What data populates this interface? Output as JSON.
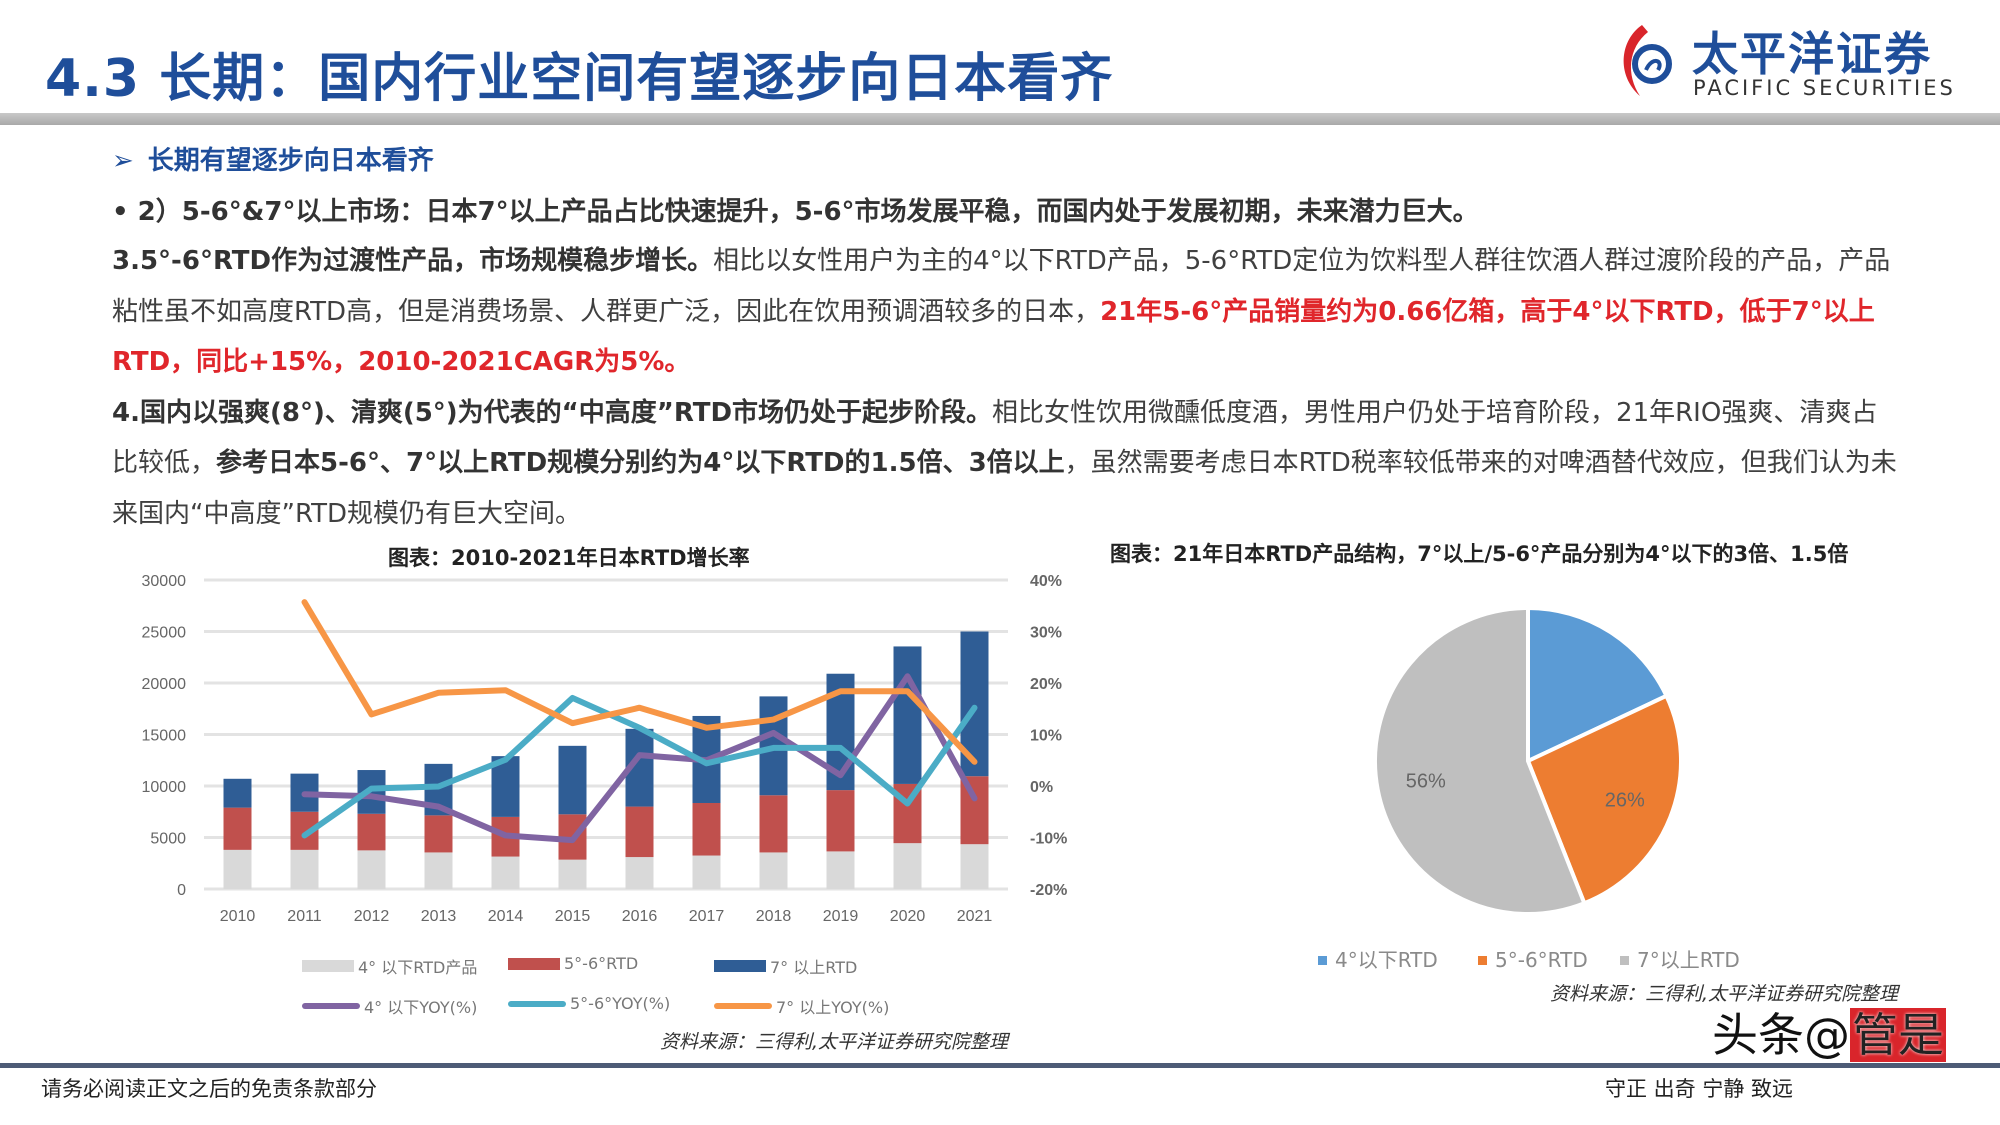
{
  "header": {
    "title": "4.3 长期：国内行业空间有望逐步向日本看齐",
    "logo_cn": "太平洋证券",
    "logo_en": "PACIFIC SECURITIES"
  },
  "content": {
    "subheading_icon": "arrow-right-icon",
    "subheading": "长期有望逐步向日本看齐",
    "bullet": "•  2）5-6°&7°以上市场：日本7°以上产品占比快速提升，5-6°市场发展平稳，而国内处于发展初期，未来潜力巨大。",
    "para3": {
      "bold": "3.5°-6°RTD作为过渡性产品，市场规模稳步增长。",
      "normal": "相比以女性用户为主的4°以下RTD产品，5-6°RTD定位为饮料型人群往饮酒人群过渡阶段的产品，产品粘性虽不如高度RTD高，但是消费场景、人群更广泛，因此在饮用预调酒较多的日本，",
      "red": "21年5-6°产品销量约为0.66亿箱，高于4°以下RTD，低于7°以上RTD，同比+15%，2010-2021CAGR为5%。"
    },
    "para4": {
      "bold1": "4.国内以强爽(8°)、清爽(5°)为代表的“中高度”RTD市场仍处于起步阶段。",
      "normal1": "相比女性饮用微醺低度酒，男性用户仍处于培育阶段，21年RIO强爽、清爽占比较低，",
      "bold2": "参考日本5-6°、7°以上RTD规模分别约为4°以下RTD的1.5倍、3倍以上",
      "normal2": "，虽然需要考虑日本RTD税率较低带来的对啤酒替代效应，但我们认为未来国内“中高度”RTD规模仍有巨大空间。"
    }
  },
  "chart_data": [
    {
      "type": "bar",
      "stacked": true,
      "title": "图表：2010-2021年日本RTD增长率",
      "categories": [
        "2010",
        "2011",
        "2012",
        "2013",
        "2014",
        "2015",
        "2016",
        "2017",
        "2018",
        "2019",
        "2020",
        "2021"
      ],
      "ylim": [
        0,
        30000
      ],
      "yticks": [
        "30000",
        "25000",
        "20000",
        "15000",
        "10000",
        "5000",
        "0"
      ],
      "y2lim": [
        -20,
        40
      ],
      "y2ticks": [
        "40%",
        "30%",
        "20%",
        "10%",
        "0%",
        "-10%",
        "-20%"
      ],
      "grid": true,
      "legend": "bottom",
      "series": [
        {
          "name": "4° 以下RTD产品",
          "kind": "bar",
          "color": "#d9d9d9",
          "values": [
            3800,
            3800,
            3750,
            3550,
            3150,
            2850,
            3100,
            3250,
            3550,
            3650,
            4450,
            4350
          ]
        },
        {
          "name": "5°-6°RTD",
          "kind": "bar",
          "color": "#c0504d",
          "values": [
            4100,
            3700,
            3550,
            3600,
            3850,
            4400,
            4900,
            5100,
            5550,
            5950,
            5750,
            6600
          ]
        },
        {
          "name": "7° 以上RTD",
          "kind": "bar",
          "color": "#2f5d95",
          "values": [
            2800,
            3700,
            4250,
            5000,
            5900,
            6650,
            7550,
            8450,
            9600,
            11300,
            13350,
            14050
          ]
        },
        {
          "name": "4° 以下YOY(%)",
          "kind": "line",
          "axis": "right",
          "color": "#8064a2",
          "values": [
            null,
            -1.6,
            -2.0,
            -4.0,
            -9.6,
            -10.5,
            6.0,
            5.0,
            10.3,
            2.1,
            21.3,
            -2.4
          ]
        },
        {
          "name": "5°-6°YOY(%)",
          "kind": "line",
          "axis": "right",
          "color": "#4bacc6",
          "values": [
            null,
            -9.6,
            -0.5,
            -0.1,
            5.1,
            17.1,
            11.3,
            4.4,
            7.4,
            7.4,
            -3.4,
            15.2
          ]
        },
        {
          "name": "7° 以上YOY(%)",
          "kind": "line",
          "axis": "right",
          "color": "#f79646",
          "values": [
            null,
            35.7,
            13.9,
            18.1,
            18.6,
            12.2,
            15.2,
            11.3,
            12.9,
            18.4,
            18.4,
            4.7
          ]
        }
      ],
      "source": "资料来源：三得利,太平洋证券研究院整理"
    },
    {
      "type": "pie",
      "title": "图表：21年日本RTD产品结构，7°以上/5-6°产品分别为4°以下的3倍、1.5倍",
      "legend": "bottom",
      "slices": [
        {
          "name": "4°以下RTD",
          "value": 18,
          "label": "",
          "color": "#5b9bd5"
        },
        {
          "name": "5°-6°RTD",
          "value": 26,
          "label": "26%",
          "color": "#ed7d31"
        },
        {
          "name": "7°以上RTD",
          "value": 56,
          "label": "56%",
          "color": "#bfbfbf"
        }
      ],
      "source": "资料来源：三得利,太平洋证券研究院整理"
    }
  ],
  "footer": {
    "disclaimer": "请务必阅读正文之后的免责条款部分",
    "motto": "守正  出奇  宁静  致远",
    "watermark_a": "头条@",
    "watermark_b": "管是"
  }
}
